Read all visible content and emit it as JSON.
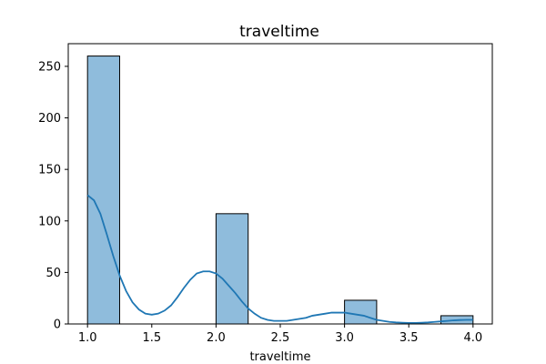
{
  "chart_data": {
    "type": "bar",
    "title": "traveltime",
    "xlabel": "traveltime",
    "ylabel": "",
    "xlim": [
      0.85,
      4.15
    ],
    "ylim": [
      0,
      272
    ],
    "x_ticks": [
      "1.0",
      "1.5",
      "2.0",
      "2.5",
      "3.0",
      "3.5",
      "4.0"
    ],
    "y_ticks": [
      "0",
      "50",
      "100",
      "150",
      "200",
      "250"
    ],
    "bin_width": 0.25,
    "bins": [
      {
        "start": 1.0,
        "value": 260
      },
      {
        "start": 1.25,
        "value": 0
      },
      {
        "start": 1.5,
        "value": 0
      },
      {
        "start": 1.75,
        "value": 0
      },
      {
        "start": 2.0,
        "value": 107
      },
      {
        "start": 2.25,
        "value": 0
      },
      {
        "start": 2.5,
        "value": 0
      },
      {
        "start": 2.75,
        "value": 0
      },
      {
        "start": 3.0,
        "value": 23
      },
      {
        "start": 3.25,
        "value": 0
      },
      {
        "start": 3.5,
        "value": 0
      },
      {
        "start": 3.75,
        "value": 8
      }
    ],
    "kde": {
      "x": [
        1.0,
        1.05,
        1.1,
        1.15,
        1.2,
        1.25,
        1.3,
        1.35,
        1.4,
        1.45,
        1.5,
        1.55,
        1.6,
        1.65,
        1.7,
        1.75,
        1.8,
        1.85,
        1.9,
        1.95,
        2.0,
        2.05,
        2.1,
        2.15,
        2.2,
        2.25,
        2.3,
        2.35,
        2.4,
        2.45,
        2.5,
        2.55,
        2.6,
        2.65,
        2.7,
        2.75,
        2.8,
        2.85,
        2.9,
        2.95,
        3.0,
        3.05,
        3.1,
        3.15,
        3.2,
        3.25,
        3.3,
        3.35,
        3.4,
        3.45,
        3.5,
        3.55,
        3.6,
        3.65,
        3.7,
        3.75,
        3.8,
        3.85,
        3.9,
        3.95,
        4.0
      ],
      "y": [
        125,
        120,
        107,
        87,
        66,
        47,
        32,
        21,
        14,
        10,
        9,
        10,
        13,
        18,
        26,
        35,
        43,
        49,
        51,
        51,
        49,
        44,
        37,
        30,
        22,
        15,
        10,
        6,
        4,
        3,
        3,
        3,
        4,
        5,
        6,
        8,
        9,
        10,
        11,
        11,
        11,
        10,
        9,
        8,
        6,
        4,
        3,
        2,
        1.5,
        1.2,
        1,
        1,
        1.2,
        1.5,
        2,
        2.5,
        3,
        3.5,
        3.8,
        4,
        4
      ]
    },
    "colors": {
      "bar_fill": "#8fbcdc",
      "bar_edge": "#000000",
      "kde_line": "#1f77b4"
    }
  }
}
